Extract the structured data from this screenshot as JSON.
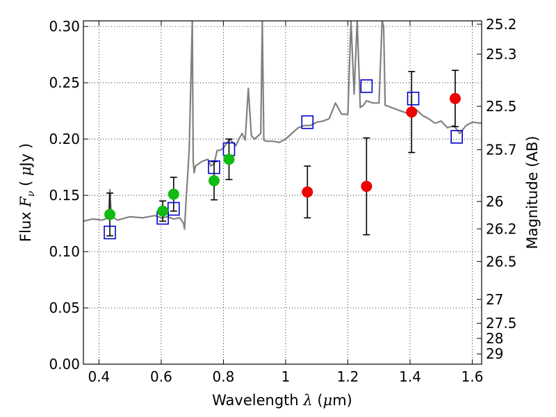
{
  "chart_data": {
    "type": "scatter",
    "title": "",
    "xlabel": "Wavelength  λ (μm)",
    "xlabel_parts": {
      "text": "Wavelength  ",
      "lambda": "λ",
      "open": " (",
      "mu": "μ",
      "unit": "m)"
    },
    "ylabel": "Flux  Fν  ( μJy )",
    "ylabel_parts": {
      "text": "Flux  ",
      "F": "F",
      "nu": "ν",
      "open": "  (  ",
      "mu": "μ",
      "unit": "Jy )"
    },
    "y2label": "Magnitude (AB)",
    "xlim": [
      0.35,
      1.63
    ],
    "ylim": [
      0.0,
      0.305
    ],
    "grid": true,
    "x_ticks": [
      {
        "value": 0.4,
        "label": "0.4"
      },
      {
        "value": 0.6,
        "label": "0.6"
      },
      {
        "value": 0.8,
        "label": "0.8"
      },
      {
        "value": 1.0,
        "label": "1"
      },
      {
        "value": 1.2,
        "label": "1.2"
      },
      {
        "value": 1.4,
        "label": "1.4"
      },
      {
        "value": 1.6,
        "label": "1.6"
      }
    ],
    "y_ticks": [
      {
        "value": 0.0,
        "label": "0.00"
      },
      {
        "value": 0.05,
        "label": "0.05"
      },
      {
        "value": 0.1,
        "label": "0.10"
      },
      {
        "value": 0.15,
        "label": "0.15"
      },
      {
        "value": 0.2,
        "label": "0.20"
      },
      {
        "value": 0.25,
        "label": "0.25"
      },
      {
        "value": 0.3,
        "label": "0.30"
      }
    ],
    "y2_ticks": [
      {
        "mag": 25.2,
        "label": "25.2"
      },
      {
        "mag": 25.3,
        "label": "25.3"
      },
      {
        "mag": 25.5,
        "label": "25.5"
      },
      {
        "mag": 25.7,
        "label": "25.7"
      },
      {
        "mag": 26.0,
        "label": "26"
      },
      {
        "mag": 26.2,
        "label": "26.2"
      },
      {
        "mag": 26.5,
        "label": "26.5"
      },
      {
        "mag": 27.0,
        "label": "27"
      },
      {
        "mag": 27.5,
        "label": "27.5"
      },
      {
        "mag": 28.0,
        "label": "28"
      },
      {
        "mag": 29.0,
        "label": "29"
      }
    ],
    "colors": {
      "spectrum": "#808080",
      "model": "#0000cc",
      "green": "#11bb11",
      "red": "#ee0000",
      "errorbar": "#000000"
    },
    "series": [
      {
        "kind": "line",
        "x": [
          0.35,
          0.38,
          0.41,
          0.43,
          0.435,
          0.44,
          0.46,
          0.5,
          0.54,
          0.58,
          0.6,
          0.62,
          0.64,
          0.66,
          0.672,
          0.675,
          0.68,
          0.69,
          0.7,
          0.703,
          0.706,
          0.71,
          0.73,
          0.75,
          0.76,
          0.77,
          0.78,
          0.79,
          0.8,
          0.81,
          0.82,
          0.84,
          0.85,
          0.86,
          0.87,
          0.88,
          0.89,
          0.9,
          0.92,
          0.925,
          0.93,
          0.94,
          0.96,
          0.98,
          1.0,
          1.02,
          1.04,
          1.06,
          1.08,
          1.1,
          1.12,
          1.14,
          1.16,
          1.18,
          1.2,
          1.21,
          1.22,
          1.23,
          1.24,
          1.25,
          1.26,
          1.28,
          1.3,
          1.31,
          1.315,
          1.32,
          1.34,
          1.36,
          1.38,
          1.4,
          1.42,
          1.44,
          1.46,
          1.48,
          1.5,
          1.52,
          1.54,
          1.56,
          1.58,
          1.6,
          1.63
        ],
        "y": [
          0.127,
          0.129,
          0.128,
          0.13,
          0.155,
          0.131,
          0.128,
          0.131,
          0.13,
          0.132,
          0.13,
          0.131,
          0.129,
          0.13,
          0.125,
          0.12,
          0.145,
          0.19,
          0.305,
          0.18,
          0.17,
          0.176,
          0.18,
          0.182,
          0.176,
          0.178,
          0.19,
          0.19,
          0.192,
          0.196,
          0.2,
          0.194,
          0.2,
          0.205,
          0.199,
          0.245,
          0.203,
          0.2,
          0.205,
          0.305,
          0.199,
          0.198,
          0.198,
          0.197,
          0.2,
          0.205,
          0.21,
          0.212,
          0.212,
          0.215,
          0.216,
          0.218,
          0.232,
          0.222,
          0.222,
          0.305,
          0.24,
          0.305,
          0.228,
          0.23,
          0.234,
          0.232,
          0.232,
          0.305,
          0.3,
          0.23,
          0.228,
          0.226,
          0.224,
          0.222,
          0.226,
          0.221,
          0.218,
          0.214,
          0.216,
          0.21,
          0.212,
          0.205,
          0.212,
          0.215,
          0.214
        ]
      },
      {
        "name": "",
        "kind": "open-square",
        "x": [
          0.435,
          0.605,
          0.64,
          0.77,
          0.818,
          1.07,
          1.26,
          1.41,
          1.55
        ],
        "y": [
          0.117,
          0.13,
          0.138,
          0.175,
          0.191,
          0.215,
          0.247,
          0.236,
          0.202
        ]
      },
      {
        "name": "",
        "kind": "filled-circle-green",
        "x": [
          0.435,
          0.605,
          0.64,
          0.77,
          0.818
        ],
        "y": [
          0.133,
          0.136,
          0.151,
          0.163,
          0.182
        ],
        "yerr": [
          0.019,
          0.009,
          0.015,
          0.017,
          0.018
        ]
      },
      {
        "name": "",
        "kind": "filled-circle-red",
        "x": [
          1.07,
          1.26,
          1.405,
          1.545
        ],
        "y": [
          0.153,
          0.158,
          0.224,
          0.236
        ],
        "yerr": [
          0.023,
          0.043,
          0.036,
          0.025
        ]
      }
    ]
  }
}
